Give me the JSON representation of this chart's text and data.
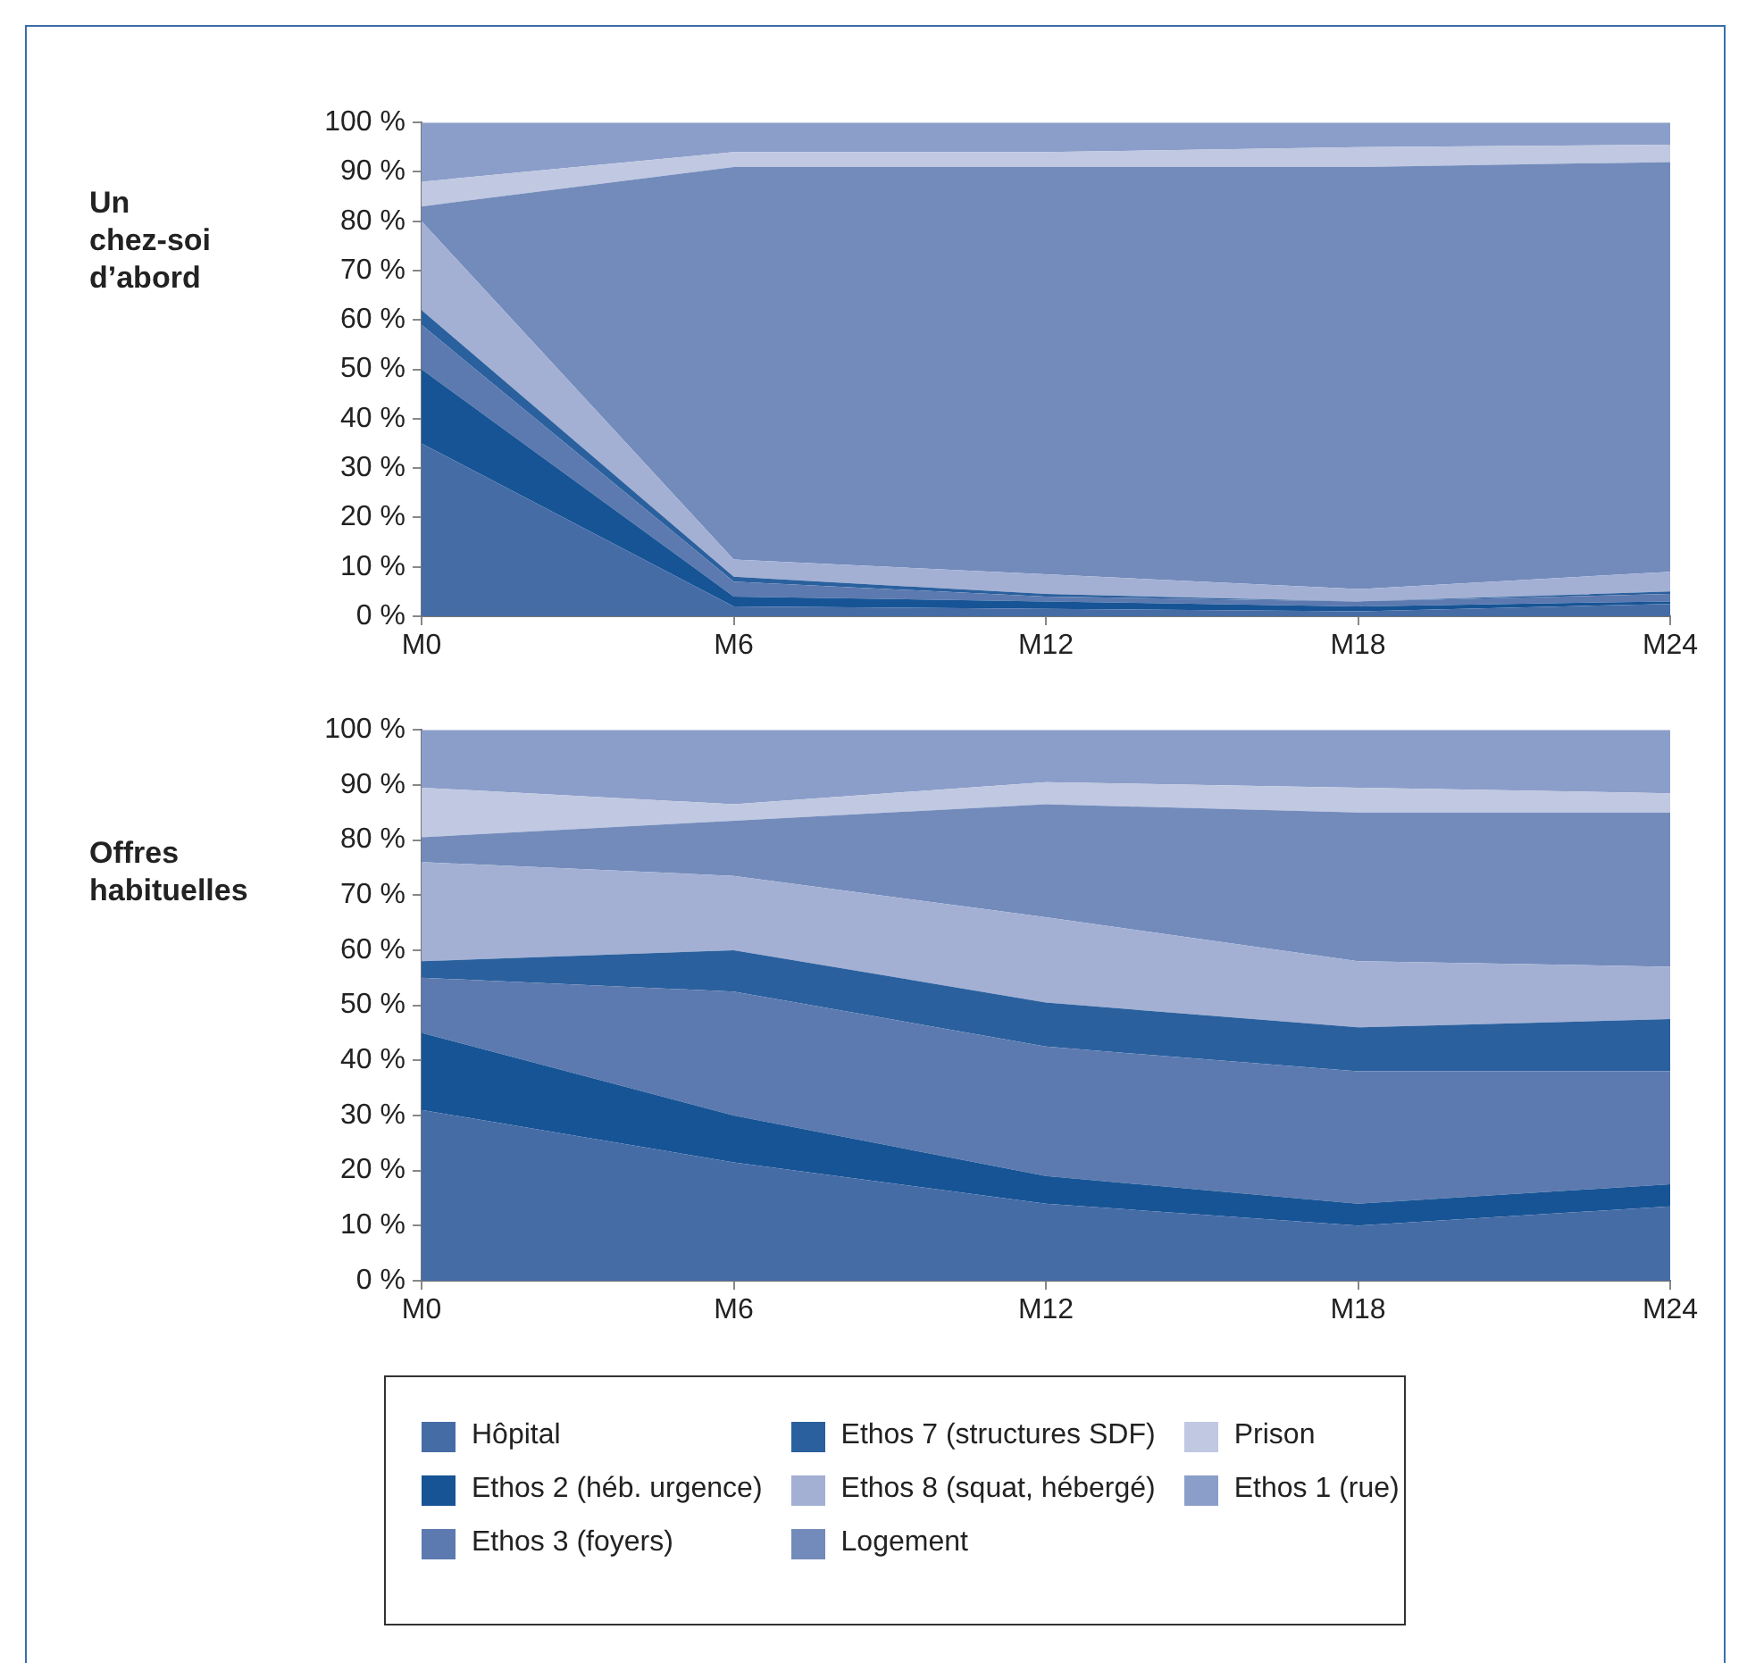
{
  "chart_data": [
    {
      "type": "area",
      "stacked": true,
      "ylabel": "Un chez-soi d’abord",
      "categories": [
        "M0",
        "M6",
        "M12",
        "M18",
        "M24"
      ],
      "ylim": [
        0,
        100
      ],
      "yticks": [
        {
          "value": 0,
          "label": "0 %"
        },
        {
          "value": 10,
          "label": "10 %"
        },
        {
          "value": 20,
          "label": "20 %"
        },
        {
          "value": 30,
          "label": "30 %"
        },
        {
          "value": 40,
          "label": "40 %"
        },
        {
          "value": 50,
          "label": "50 %"
        },
        {
          "value": 60,
          "label": "60 %"
        },
        {
          "value": 70,
          "label": "70 %"
        },
        {
          "value": 80,
          "label": "80 %"
        },
        {
          "value": 90,
          "label": "90 %"
        },
        {
          "value": 100,
          "label": "100 %"
        }
      ],
      "grid": false,
      "legend": false,
      "marker": "none",
      "series": [
        {
          "color": "#466ca6",
          "values": [
            35,
            2,
            1.5,
            1,
            2.5
          ]
        },
        {
          "color": "#175495",
          "values": [
            15,
            2,
            1.5,
            1,
            0.5
          ]
        },
        {
          "color": "#5c7ab0",
          "values": [
            9,
            3,
            1,
            1,
            1.5
          ]
        },
        {
          "color": "#2a609e",
          "values": [
            3,
            1,
            0.5,
            0,
            0.5
          ]
        },
        {
          "color": "#a3b0d4",
          "values": [
            18,
            3.5,
            4,
            2.5,
            4
          ]
        },
        {
          "color": "#738bbb",
          "values": [
            3,
            79.5,
            82.5,
            85.5,
            83
          ]
        },
        {
          "color": "#c0c8e2",
          "values": [
            5,
            3,
            3,
            4,
            3.5
          ]
        },
        {
          "color": "#8b9ec9",
          "values": [
            12,
            6,
            6,
            5,
            4.5
          ]
        }
      ]
    },
    {
      "type": "area",
      "stacked": true,
      "ylabel": "Offres habituelles",
      "categories": [
        "M0",
        "M6",
        "M12",
        "M18",
        "M24"
      ],
      "ylim": [
        0,
        100
      ],
      "yticks": [
        {
          "value": 0,
          "label": "0 %"
        },
        {
          "value": 10,
          "label": "10 %"
        },
        {
          "value": 20,
          "label": "20 %"
        },
        {
          "value": 30,
          "label": "30 %"
        },
        {
          "value": 40,
          "label": "40 %"
        },
        {
          "value": 50,
          "label": "50 %"
        },
        {
          "value": 60,
          "label": "60 %"
        },
        {
          "value": 70,
          "label": "70 %"
        },
        {
          "value": 80,
          "label": "80 %"
        },
        {
          "value": 90,
          "label": "90 %"
        },
        {
          "value": 100,
          "label": "100 %"
        }
      ],
      "grid": false,
      "legend": "bottom",
      "marker": "none",
      "series": [
        {
          "name": "Hôpital",
          "color": "#466ca6",
          "values": [
            31,
            21.5,
            14,
            10,
            13.5
          ]
        },
        {
          "name": "Ethos 2 (héb. urgence)",
          "color": "#175495",
          "values": [
            14,
            8.5,
            5,
            4,
            4
          ]
        },
        {
          "name": "Ethos 3 (foyers)",
          "color": "#5c7ab0",
          "values": [
            10,
            22.5,
            23.5,
            24,
            20.5
          ]
        },
        {
          "name": "Ethos 7 (structures SDF)",
          "color": "#2a609e",
          "values": [
            3,
            7.5,
            8,
            8,
            9.5
          ]
        },
        {
          "name": "Ethos 8 (squat, hébergé)",
          "color": "#a3b0d4",
          "values": [
            18,
            13.5,
            15.5,
            12,
            9.5
          ]
        },
        {
          "name": "Logement",
          "color": "#738bbb",
          "values": [
            4.5,
            10,
            20.5,
            27,
            28
          ]
        },
        {
          "name": "Prison",
          "color": "#c0c8e2",
          "values": [
            9,
            3,
            4,
            4.5,
            3.5
          ]
        },
        {
          "name": "Ethos 1 (rue)",
          "color": "#8b9ec9",
          "values": [
            10.5,
            13.5,
            9.5,
            10.5,
            11.5
          ]
        }
      ]
    }
  ]
}
